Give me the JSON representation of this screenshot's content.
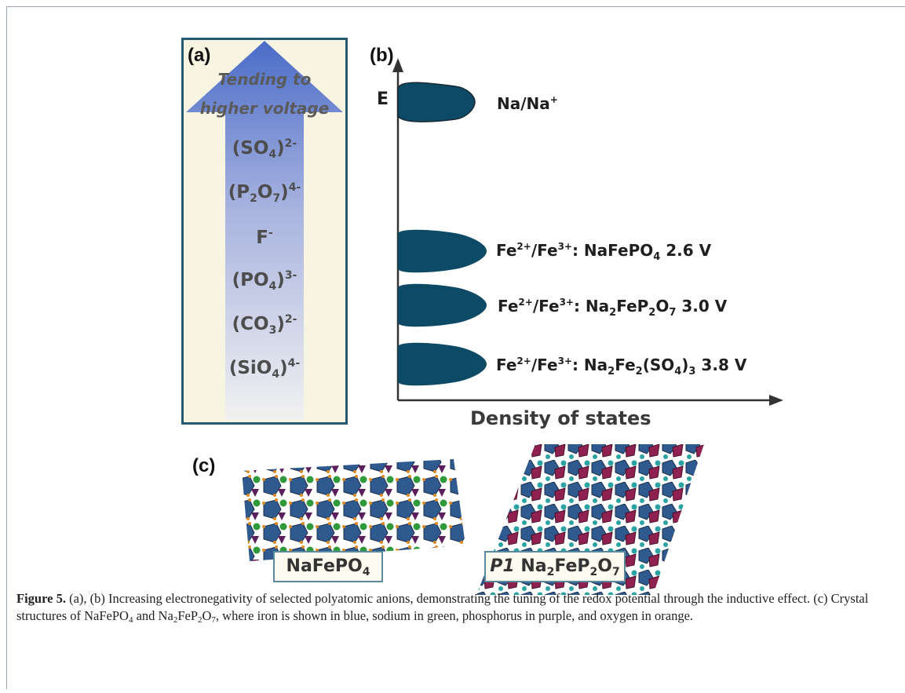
{
  "panel_a": {
    "tag": "(a)",
    "arrow_text_1": "Tending to",
    "arrow_text_2": "higher voltage",
    "anions": [
      {
        "base": "(SO",
        "sub": "4",
        "close": ")",
        "sup": "2-"
      },
      {
        "base": "(P",
        "sub": "2",
        "mid": "O",
        "sub2": "7",
        "close": ")",
        "sup": "4-"
      },
      {
        "base": "F",
        "sup": "-"
      },
      {
        "base": "(PO",
        "sub": "4",
        "close": ")",
        "sup": "3-"
      },
      {
        "base": "(CO",
        "sub": "3",
        "close": ")",
        "sup": "2-"
      },
      {
        "base": "(SiO",
        "sub": "4",
        "close": ")",
        "sup": "4-"
      }
    ]
  },
  "panel_b": {
    "tag": "(b)",
    "e_label": "E",
    "xlabel": "Density of states",
    "states": [
      {
        "label": "Na/Na",
        "sup": "+"
      },
      {
        "label_a": "Fe",
        "sup_a": "2+",
        "label_b": "/Fe",
        "sup_b": "3+",
        "label_c": ": NaFePO",
        "sub_c": "4",
        "label_d": " 2.6 V"
      },
      {
        "label_a": "Fe",
        "sup_a": "2+",
        "label_b": "/Fe",
        "sup_b": "3+",
        "label_c": ": Na",
        "sub_c": "2",
        "label_d": "FeP",
        "sub_d": "2",
        "label_e": "O",
        "sub_e": "7",
        "label_f": " 3.0 V"
      },
      {
        "label_a": "Fe",
        "sup_a": "2+",
        "label_b": "/Fe",
        "sup_b": "3+",
        "label_c": ": Na",
        "sub_c": "2",
        "label_d": "Fe",
        "sub_d": "2",
        "label_e": "(SO",
        "sub_e": "4",
        "label_f": ")",
        "sub_f": "3",
        "label_g": " 3.8 V"
      }
    ]
  },
  "panel_c": {
    "tag": "(c)",
    "box1": {
      "text": "NaFePO",
      "sub": "4"
    },
    "box2": {
      "prefix": "P1",
      "text": " Na",
      "sub1": "2",
      "text2": "FeP",
      "sub2": "2",
      "text3": "O",
      "sub3": "7"
    }
  },
  "colors": {
    "state_fill": "#0d4a66",
    "panel_border": "#245a72",
    "panel_bg": "#f7f4e2",
    "arrow": "#5b77c9"
  },
  "caption": {
    "bold": "Figure 5.",
    "t1": " (a), (b) Increasing electronegativity of selected polyatomic anions, demonstrating the tuning of the redox potential through the inductive effect. (c) Crystal structures of NaFePO",
    "s1": "4",
    "t2": " and Na",
    "s2": "2",
    "t3": "FeP",
    "s3": "2",
    "t4": "O",
    "s4": "7",
    "t5": ", where iron is shown in blue, sodium in green, phosphorus in purple, and oxygen in orange."
  }
}
